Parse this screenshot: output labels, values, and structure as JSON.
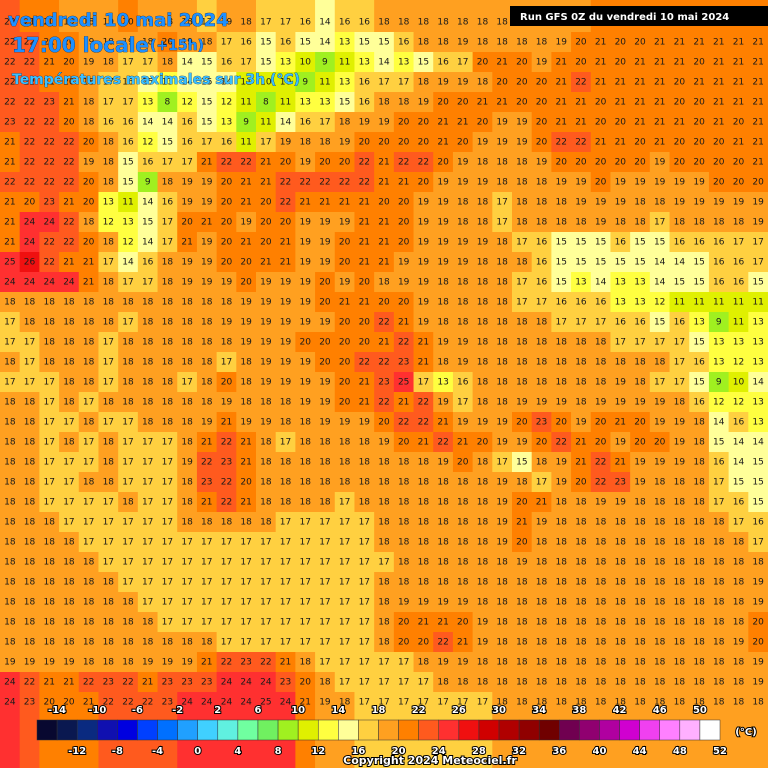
{
  "header": {
    "date": "vendredi 10 mai 2024",
    "time": "17:00 locale",
    "lead": "(+15h)",
    "subtitle": "Températures maximales sur 3h (°C)",
    "run": "Run GFS 0Z du vendredi 10 mai 2024",
    "copyright": "Copyright 2024 Meteociel.fr"
  },
  "grid": {
    "rows": [
      [
        22,
        21,
        20,
        19,
        18,
        19,
        20,
        19,
        18,
        18,
        17,
        19,
        18,
        17,
        17,
        16,
        14,
        16,
        16,
        18,
        18,
        18,
        18,
        18,
        18,
        18,
        18,
        18,
        18,
        19,
        20,
        20,
        20,
        21,
        21,
        21,
        21,
        21,
        21
      ],
      [
        22,
        22,
        21,
        20,
        19,
        18,
        19,
        18,
        20,
        19,
        18,
        17,
        16,
        15,
        16,
        15,
        14,
        13,
        15,
        15,
        16,
        18,
        18,
        19,
        18,
        18,
        18,
        18,
        19,
        20,
        21,
        20,
        20,
        21,
        21,
        21,
        21,
        21,
        21
      ],
      [
        22,
        22,
        21,
        20,
        19,
        18,
        17,
        17,
        18,
        14,
        15,
        16,
        17,
        15,
        13,
        10,
        9,
        11,
        13,
        14,
        13,
        15,
        16,
        17,
        20,
        21,
        20,
        19,
        21,
        20,
        21,
        20,
        21,
        21,
        21,
        20,
        21,
        21,
        21
      ],
      [
        22,
        22,
        21,
        20,
        18,
        17,
        16,
        15,
        13,
        14,
        15,
        14,
        11,
        10,
        10,
        9,
        11,
        13,
        16,
        17,
        17,
        18,
        19,
        19,
        18,
        20,
        20,
        20,
        21,
        22,
        21,
        21,
        21,
        21,
        20,
        21,
        21,
        21,
        21
      ],
      [
        22,
        22,
        23,
        21,
        18,
        17,
        17,
        13,
        8,
        12,
        15,
        12,
        11,
        8,
        11,
        13,
        13,
        15,
        16,
        18,
        18,
        19,
        20,
        20,
        21,
        21,
        20,
        20,
        21,
        21,
        20,
        21,
        21,
        21,
        20,
        20,
        21,
        21,
        21
      ],
      [
        23,
        22,
        22,
        20,
        18,
        16,
        16,
        14,
        14,
        16,
        15,
        13,
        9,
        11,
        14,
        16,
        17,
        18,
        19,
        19,
        20,
        20,
        21,
        21,
        20,
        19,
        19,
        20,
        21,
        21,
        20,
        20,
        21,
        21,
        21,
        20,
        21,
        20,
        21
      ],
      [
        21,
        22,
        22,
        22,
        20,
        18,
        16,
        12,
        15,
        16,
        17,
        16,
        11,
        17,
        19,
        18,
        18,
        19,
        20,
        20,
        20,
        20,
        21,
        20,
        19,
        19,
        19,
        20,
        22,
        22,
        21,
        21,
        20,
        21,
        20,
        20,
        20,
        21,
        21
      ],
      [
        21,
        22,
        22,
        22,
        19,
        18,
        15,
        16,
        17,
        17,
        21,
        22,
        22,
        21,
        20,
        19,
        20,
        20,
        22,
        21,
        22,
        22,
        20,
        19,
        18,
        18,
        18,
        19,
        20,
        20,
        20,
        20,
        20,
        19,
        20,
        20,
        20,
        20,
        21
      ],
      [
        22,
        22,
        22,
        22,
        20,
        18,
        15,
        9,
        18,
        19,
        19,
        20,
        21,
        21,
        22,
        22,
        22,
        22,
        22,
        21,
        21,
        20,
        19,
        19,
        19,
        18,
        18,
        18,
        19,
        19,
        20,
        19,
        19,
        19,
        19,
        19,
        20,
        20,
        20
      ],
      [
        21,
        20,
        23,
        21,
        20,
        13,
        11,
        14,
        16,
        19,
        19,
        20,
        21,
        20,
        22,
        21,
        21,
        21,
        21,
        20,
        20,
        19,
        19,
        18,
        18,
        17,
        18,
        18,
        18,
        19,
        19,
        19,
        18,
        18,
        19,
        19,
        19,
        19,
        19
      ],
      [
        21,
        24,
        24,
        22,
        18,
        12,
        13,
        15,
        17,
        20,
        21,
        20,
        19,
        20,
        20,
        19,
        19,
        19,
        21,
        21,
        20,
        19,
        19,
        18,
        18,
        17,
        18,
        18,
        18,
        18,
        19,
        18,
        18,
        17,
        18,
        18,
        18,
        18,
        19
      ],
      [
        21,
        24,
        22,
        22,
        20,
        18,
        12,
        14,
        17,
        21,
        19,
        20,
        21,
        20,
        21,
        19,
        19,
        20,
        21,
        21,
        20,
        19,
        19,
        19,
        19,
        18,
        17,
        16,
        15,
        15,
        15,
        16,
        15,
        15,
        16,
        16,
        16,
        17,
        17
      ],
      [
        25,
        26,
        22,
        21,
        21,
        17,
        14,
        16,
        18,
        19,
        19,
        20,
        20,
        21,
        21,
        19,
        19,
        20,
        21,
        21,
        19,
        19,
        19,
        19,
        18,
        18,
        18,
        16,
        15,
        15,
        15,
        15,
        15,
        14,
        14,
        15,
        16,
        16,
        17
      ],
      [
        24,
        24,
        24,
        24,
        21,
        18,
        17,
        17,
        18,
        19,
        19,
        19,
        20,
        19,
        19,
        19,
        20,
        19,
        20,
        18,
        19,
        19,
        18,
        18,
        18,
        18,
        17,
        16,
        15,
        13,
        14,
        13,
        13,
        14,
        15,
        15,
        16,
        16,
        15
      ],
      [
        18,
        18,
        18,
        18,
        18,
        18,
        18,
        18,
        18,
        18,
        18,
        18,
        19,
        19,
        19,
        19,
        20,
        21,
        21,
        20,
        20,
        19,
        18,
        18,
        18,
        18,
        17,
        17,
        16,
        16,
        16,
        13,
        13,
        12,
        11,
        11,
        11,
        11,
        11
      ],
      [
        17,
        18,
        18,
        18,
        18,
        18,
        17,
        18,
        18,
        18,
        18,
        19,
        19,
        19,
        19,
        19,
        19,
        20,
        20,
        22,
        21,
        19,
        18,
        18,
        18,
        18,
        18,
        18,
        17,
        17,
        17,
        16,
        16,
        15,
        16,
        13,
        9,
        11,
        13
      ],
      [
        17,
        17,
        18,
        18,
        18,
        17,
        18,
        18,
        18,
        18,
        18,
        18,
        19,
        19,
        19,
        20,
        20,
        20,
        20,
        21,
        22,
        21,
        19,
        19,
        18,
        18,
        18,
        18,
        18,
        18,
        18,
        17,
        17,
        17,
        17,
        15,
        13,
        13,
        13
      ],
      [
        18,
        17,
        18,
        18,
        18,
        17,
        18,
        18,
        18,
        18,
        18,
        17,
        18,
        19,
        19,
        19,
        20,
        20,
        22,
        22,
        23,
        21,
        18,
        19,
        18,
        18,
        18,
        18,
        18,
        18,
        18,
        18,
        18,
        18,
        17,
        16,
        13,
        12,
        13
      ],
      [
        17,
        17,
        17,
        18,
        18,
        17,
        18,
        18,
        18,
        17,
        18,
        20,
        18,
        19,
        19,
        19,
        19,
        20,
        21,
        23,
        25,
        17,
        13,
        16,
        18,
        18,
        18,
        18,
        18,
        18,
        18,
        19,
        18,
        17,
        17,
        15,
        9,
        10,
        14
      ],
      [
        18,
        18,
        17,
        18,
        17,
        18,
        18,
        18,
        18,
        18,
        18,
        19,
        18,
        18,
        18,
        19,
        19,
        20,
        21,
        22,
        21,
        22,
        19,
        17,
        18,
        18,
        19,
        19,
        19,
        18,
        19,
        19,
        19,
        19,
        18,
        16,
        12,
        12,
        13
      ],
      [
        18,
        18,
        17,
        17,
        18,
        17,
        17,
        18,
        18,
        18,
        19,
        21,
        19,
        19,
        18,
        18,
        19,
        19,
        19,
        20,
        22,
        22,
        21,
        19,
        19,
        19,
        20,
        23,
        20,
        19,
        20,
        21,
        20,
        19,
        19,
        18,
        14,
        16,
        13
      ],
      [
        18,
        18,
        17,
        18,
        17,
        18,
        17,
        17,
        17,
        18,
        21,
        22,
        21,
        18,
        17,
        18,
        18,
        18,
        18,
        19,
        20,
        21,
        22,
        21,
        20,
        19,
        19,
        20,
        22,
        21,
        20,
        19,
        20,
        20,
        19,
        18,
        15,
        14,
        14
      ],
      [
        18,
        18,
        17,
        17,
        17,
        18,
        17,
        17,
        17,
        19,
        22,
        23,
        21,
        18,
        18,
        18,
        18,
        18,
        18,
        18,
        18,
        18,
        19,
        20,
        18,
        17,
        15,
        18,
        19,
        21,
        22,
        21,
        19,
        19,
        19,
        18,
        16,
        14,
        15
      ],
      [
        18,
        18,
        17,
        17,
        18,
        18,
        17,
        17,
        17,
        18,
        23,
        22,
        20,
        18,
        18,
        18,
        18,
        18,
        18,
        18,
        18,
        18,
        18,
        18,
        18,
        19,
        18,
        17,
        19,
        20,
        22,
        23,
        19,
        18,
        18,
        18,
        17,
        15,
        15
      ],
      [
        18,
        18,
        17,
        17,
        17,
        17,
        18,
        17,
        17,
        18,
        21,
        22,
        21,
        18,
        18,
        18,
        18,
        17,
        18,
        18,
        18,
        18,
        18,
        18,
        18,
        19,
        20,
        21,
        18,
        18,
        19,
        19,
        18,
        18,
        18,
        18,
        17,
        16,
        15
      ],
      [
        18,
        18,
        18,
        17,
        17,
        17,
        17,
        17,
        17,
        18,
        18,
        18,
        18,
        18,
        17,
        17,
        17,
        17,
        17,
        18,
        18,
        18,
        18,
        18,
        18,
        19,
        21,
        19,
        18,
        18,
        18,
        18,
        18,
        18,
        18,
        18,
        18,
        17,
        16
      ],
      [
        18,
        18,
        18,
        18,
        17,
        17,
        17,
        17,
        17,
        17,
        17,
        17,
        17,
        17,
        17,
        17,
        17,
        17,
        17,
        18,
        18,
        18,
        18,
        18,
        18,
        19,
        20,
        18,
        18,
        18,
        18,
        18,
        18,
        18,
        18,
        18,
        18,
        18,
        17
      ],
      [
        18,
        18,
        18,
        18,
        18,
        17,
        17,
        17,
        17,
        17,
        17,
        17,
        17,
        17,
        17,
        17,
        17,
        17,
        17,
        17,
        18,
        18,
        18,
        18,
        18,
        18,
        19,
        18,
        18,
        18,
        18,
        18,
        18,
        18,
        18,
        18,
        18,
        18,
        18
      ],
      [
        18,
        18,
        18,
        18,
        18,
        18,
        17,
        17,
        17,
        17,
        17,
        17,
        17,
        17,
        17,
        17,
        17,
        17,
        17,
        18,
        18,
        18,
        18,
        18,
        18,
        18,
        18,
        18,
        18,
        18,
        18,
        18,
        18,
        18,
        18,
        18,
        18,
        18,
        19
      ],
      [
        18,
        18,
        18,
        18,
        18,
        18,
        18,
        17,
        17,
        17,
        17,
        17,
        17,
        17,
        17,
        17,
        17,
        17,
        17,
        18,
        19,
        19,
        19,
        19,
        18,
        18,
        18,
        18,
        18,
        18,
        18,
        18,
        18,
        18,
        18,
        18,
        18,
        18,
        19
      ],
      [
        18,
        18,
        18,
        18,
        18,
        18,
        18,
        18,
        17,
        17,
        17,
        17,
        17,
        17,
        17,
        17,
        17,
        17,
        17,
        18,
        20,
        21,
        21,
        20,
        19,
        18,
        18,
        18,
        18,
        18,
        18,
        18,
        18,
        18,
        18,
        18,
        18,
        18,
        20
      ],
      [
        18,
        18,
        18,
        18,
        18,
        18,
        18,
        18,
        18,
        18,
        18,
        17,
        17,
        17,
        17,
        17,
        17,
        17,
        17,
        18,
        20,
        20,
        22,
        21,
        19,
        18,
        18,
        18,
        18,
        18,
        18,
        18,
        18,
        18,
        18,
        18,
        18,
        19,
        20
      ],
      [
        19,
        19,
        19,
        19,
        18,
        18,
        18,
        19,
        19,
        19,
        21,
        22,
        23,
        22,
        21,
        18,
        17,
        17,
        17,
        17,
        17,
        18,
        19,
        19,
        18,
        18,
        18,
        18,
        18,
        18,
        18,
        18,
        18,
        18,
        18,
        18,
        18,
        18,
        19
      ],
      [
        24,
        22,
        21,
        21,
        22,
        23,
        22,
        21,
        23,
        23,
        23,
        24,
        24,
        24,
        23,
        20,
        18,
        17,
        17,
        17,
        17,
        17,
        18,
        18,
        18,
        18,
        18,
        18,
        18,
        18,
        18,
        18,
        18,
        18,
        18,
        18,
        18,
        18,
        19
      ],
      [
        24,
        23,
        20,
        20,
        21,
        22,
        22,
        22,
        23,
        24,
        24,
        24,
        24,
        25,
        24,
        21,
        19,
        18,
        17,
        17,
        17,
        17,
        17,
        17,
        17,
        18,
        18,
        18,
        18,
        18,
        18,
        18,
        18,
        18,
        18,
        18,
        18,
        18,
        18
      ]
    ]
  },
  "legend": {
    "range": [
      -16,
      52
    ],
    "colors": [
      "#080830",
      "#0a1850",
      "#0a2a80",
      "#1010b0",
      "#0000e0",
      "#0040ff",
      "#0070ff",
      "#20a0ff",
      "#40d0ff",
      "#60f0e0",
      "#70ffa0",
      "#70f060",
      "#a0f020",
      "#e0f000",
      "#ffff40",
      "#ffff99",
      "#ffd040",
      "#ffa020",
      "#ff8000",
      "#ff5a1e",
      "#ff3030",
      "#f01010",
      "#d00000",
      "#b00000",
      "#900000",
      "#700000",
      "#700050",
      "#900070",
      "#b000a0",
      "#d000d0",
      "#f040f0",
      "#ff80ff",
      "#ffb0ff",
      "#ffffff"
    ],
    "ticks_top": [
      -14,
      -10,
      -6,
      -2,
      2,
      6,
      10,
      14,
      18,
      22,
      26,
      30,
      34,
      38,
      42,
      46,
      50
    ],
    "ticks_bottom": [
      -12,
      -8,
      -4,
      0,
      4,
      8,
      12,
      16,
      20,
      24,
      28,
      32,
      36,
      40,
      44,
      48,
      52
    ],
    "unit": "(°C)"
  }
}
